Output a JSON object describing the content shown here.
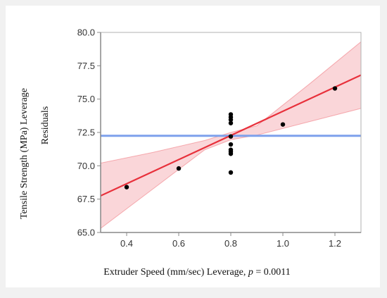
{
  "chart_data": {
    "type": "scatter",
    "ylabel_line1": "Tensile Strength (MPa) Leverage",
    "ylabel_line2": "Residuals",
    "xlabel_main": "Extruder Speed (mm/sec) Leverage, ",
    "xlabel_p_symbol": "p",
    "xlabel_p_value": " = 0.0011",
    "xlim": [
      0.3,
      1.3
    ],
    "ylim": [
      65.0,
      80.0
    ],
    "x_ticks": [
      0.4,
      0.6,
      0.8,
      1.0,
      1.2
    ],
    "x_tick_labels": [
      "0.4",
      "0.6",
      "0.8",
      "1.0",
      "1.2"
    ],
    "y_ticks": [
      65.0,
      67.5,
      70.0,
      72.5,
      75.0,
      77.5,
      80.0
    ],
    "y_tick_labels": [
      "65.0",
      "67.5",
      "70.0",
      "72.5",
      "75.0",
      "77.5",
      "80.0"
    ],
    "points": [
      {
        "x": 0.4,
        "y": 68.4
      },
      {
        "x": 0.6,
        "y": 69.8
      },
      {
        "x": 0.8,
        "y": 69.5
      },
      {
        "x": 0.8,
        "y": 70.9
      },
      {
        "x": 0.8,
        "y": 71.05
      },
      {
        "x": 0.8,
        "y": 71.2
      },
      {
        "x": 0.8,
        "y": 71.6
      },
      {
        "x": 0.8,
        "y": 72.2
      },
      {
        "x": 0.8,
        "y": 73.2
      },
      {
        "x": 0.8,
        "y": 73.45
      },
      {
        "x": 0.8,
        "y": 73.65
      },
      {
        "x": 0.8,
        "y": 73.85
      },
      {
        "x": 1.0,
        "y": 73.1
      },
      {
        "x": 1.2,
        "y": 75.8
      }
    ],
    "fit_line": {
      "x": [
        0.3,
        1.3
      ],
      "y": [
        67.75,
        76.8
      ]
    },
    "confidence_band": {
      "x": [
        0.3,
        0.5,
        0.7,
        0.8,
        0.9,
        1.1,
        1.3
      ],
      "lower": [
        65.3,
        68.25,
        71.2,
        71.95,
        72.3,
        73.3,
        74.3
      ],
      "upper": [
        70.2,
        71.0,
        71.9,
        72.5,
        73.0,
        76.1,
        79.3
      ]
    },
    "mean_line": {
      "y": 72.25
    },
    "grid": false,
    "colors": {
      "points": "#000000",
      "fit_line": "#e8303b",
      "confidence_band": "#f8c8cc",
      "mean_line": "#7ea1ec",
      "axis": "#888888"
    }
  }
}
